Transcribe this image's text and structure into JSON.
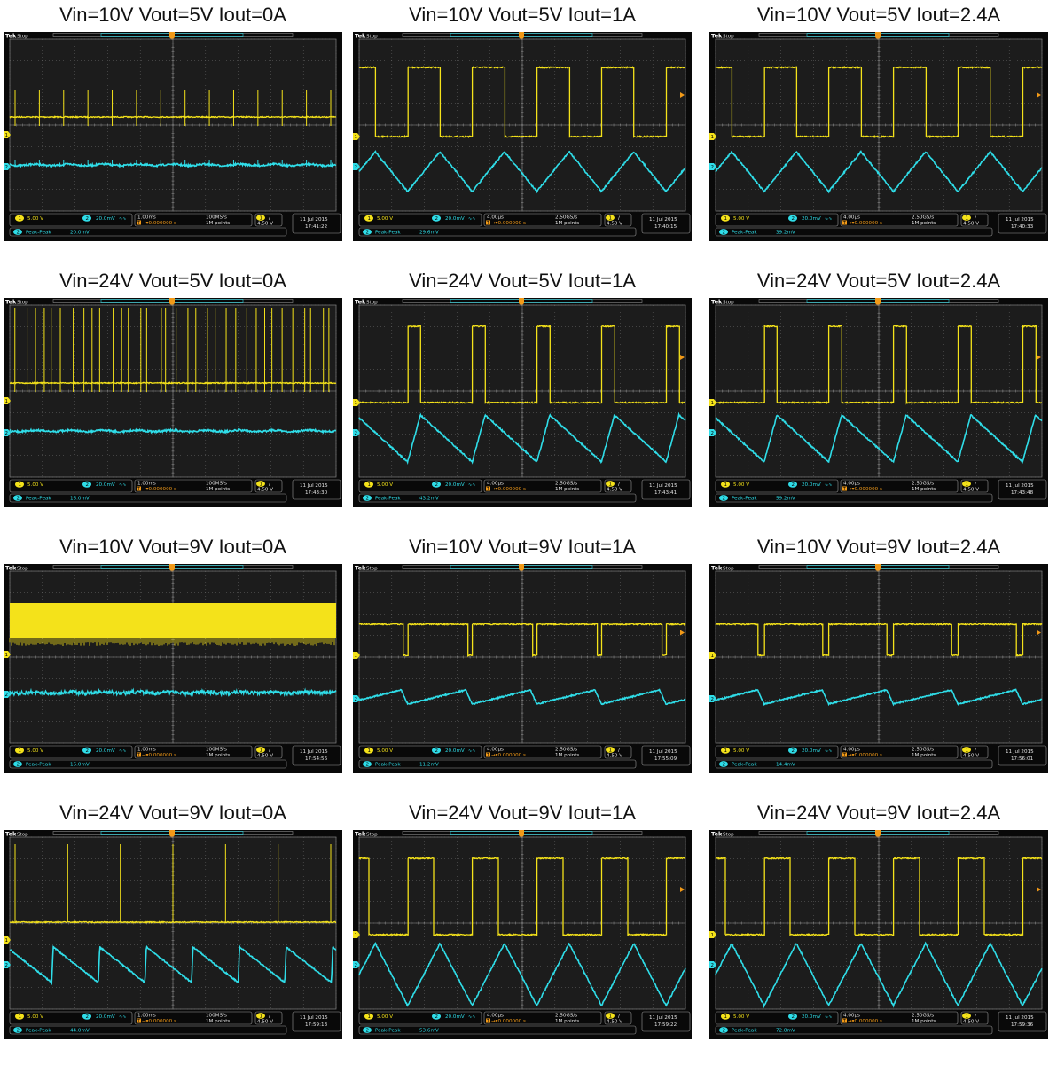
{
  "colors": {
    "ch1": "#f4e21a",
    "ch2": "#2fdde8",
    "screen": "#1c1c1c",
    "grid": "#6b6b6b",
    "bar": "#090909",
    "frame": "#3a3a3a"
  },
  "scopes": [
    {
      "title": "Vin=10V Vout=5V Iout=0A",
      "timebase": "1.00ms",
      "rate": "100MS/s",
      "date": "11 Jul  2015",
      "time": "17:41:22",
      "pkpk": "20.0mV",
      "chart_data": {
        "type": "line",
        "series": [
          {
            "wave": "spikes-sparse"
          },
          {
            "wave": "flat-ripple"
          }
        ]
      }
    },
    {
      "title": "Vin=10V Vout=5V Iout=1A",
      "timebase": "4.00µs",
      "rate": "2.50GS/s",
      "date": "11 Jul  2015",
      "time": "17:40:15",
      "pkpk": "29.6mV",
      "chart_data": {
        "type": "line",
        "series": [
          {
            "wave": "square",
            "duty": 0.5
          },
          {
            "wave": "triangle"
          }
        ]
      }
    },
    {
      "title": "Vin=10V Vout=5V Iout=2.4A",
      "timebase": "4.00µs",
      "rate": "2.50GS/s",
      "date": "11 Jul  2015",
      "time": "17:40:33",
      "pkpk": "39.2mV",
      "chart_data": {
        "type": "line",
        "series": [
          {
            "wave": "square",
            "duty": 0.5
          },
          {
            "wave": "triangle"
          }
        ]
      }
    },
    {
      "title": "Vin=24V Vout=5V Iout=0A",
      "timebase": "1.00ms",
      "rate": "100MS/s",
      "date": "11 Jul  2015",
      "time": "17:43:30",
      "pkpk": "16.0mV",
      "chart_data": {
        "type": "line",
        "series": [
          {
            "wave": "spikes-dense"
          },
          {
            "wave": "flat-ripple"
          }
        ]
      }
    },
    {
      "title": "Vin=24V Vout=5V Iout=1A",
      "timebase": "4.00µs",
      "rate": "2.50GS/s",
      "date": "11 Jul  2015",
      "time": "17:43:41",
      "pkpk": "43.2mV",
      "chart_data": {
        "type": "line",
        "series": [
          {
            "wave": "square",
            "duty": 0.2
          },
          {
            "wave": "sawtooth"
          }
        ]
      }
    },
    {
      "title": "Vin=24V Vout=5V Iout=2.4A",
      "timebase": "4.00µs",
      "rate": "2.50GS/s",
      "date": "11 Jul  2015",
      "time": "17:43:48",
      "pkpk": "59.2mV",
      "chart_data": {
        "type": "line",
        "series": [
          {
            "wave": "square",
            "duty": 0.2
          },
          {
            "wave": "sawtooth"
          }
        ]
      }
    },
    {
      "title": "Vin=10V Vout=9V Iout=0A",
      "timebase": "1.00ms",
      "rate": "100MS/s",
      "date": "11 Jul  2015",
      "time": "17:54:56",
      "pkpk": "16.0mV",
      "chart_data": {
        "type": "line",
        "series": [
          {
            "wave": "band"
          },
          {
            "wave": "noisy-flat"
          }
        ]
      }
    },
    {
      "title": "Vin=10V Vout=9V Iout=1A",
      "timebase": "4.00µs",
      "rate": "2.50GS/s",
      "date": "11 Jul  2015",
      "time": "17:55:09",
      "pkpk": "11.2mV",
      "chart_data": {
        "type": "line",
        "series": [
          {
            "wave": "square",
            "duty": 0.93
          },
          {
            "wave": "slow-saw"
          }
        ]
      }
    },
    {
      "title": "Vin=10V Vout=9V Iout=2.4A",
      "timebase": "4.00µs",
      "rate": "2.50GS/s",
      "date": "11 Jul  2015",
      "time": "17:56:01",
      "pkpk": "14.4mV",
      "chart_data": {
        "type": "line",
        "series": [
          {
            "wave": "square",
            "duty": 0.9
          },
          {
            "wave": "slow-saw"
          }
        ]
      }
    },
    {
      "title": "Vin=24V Vout=9V Iout=0A",
      "timebase": "1.00ms",
      "rate": "100MS/s",
      "date": "11 Jul  2015",
      "time": "17:59:13",
      "pkpk": "44.0mV",
      "chart_data": {
        "type": "line",
        "series": [
          {
            "wave": "spikes-sparse"
          },
          {
            "wave": "reverse-saw"
          }
        ]
      }
    },
    {
      "title": "Vin=24V Vout=9V Iout=1A",
      "timebase": "4.00µs",
      "rate": "2.50GS/s",
      "date": "11 Jul  2015",
      "time": "17:59:22",
      "pkpk": "53.6mV",
      "chart_data": {
        "type": "line",
        "series": [
          {
            "wave": "square",
            "duty": 0.4
          },
          {
            "wave": "triangle"
          }
        ]
      }
    },
    {
      "title": "Vin=24V Vout=9V Iout=2.4A",
      "timebase": "4.00µs",
      "rate": "2.50GS/s",
      "date": "11 Jul  2015",
      "time": "17:59:36",
      "pkpk": "72.8mV",
      "chart_data": {
        "type": "line",
        "series": [
          {
            "wave": "square",
            "duty": 0.4
          },
          {
            "wave": "triangle"
          }
        ]
      }
    }
  ],
  "common": {
    "brand": "Tek",
    "state": "Stop",
    "ch1_num": "1",
    "ch1_scale": "5.00 V",
    "ch2_num": "2",
    "ch2_scale": "20.0mV",
    "ch2_bw": "∿∿",
    "trig_offset": "0.000000 s",
    "points": "1M points",
    "trig_ch": "1",
    "trig_slope": "/",
    "trig_level": "4.50 V",
    "meas_label": "Peak-Peak"
  }
}
